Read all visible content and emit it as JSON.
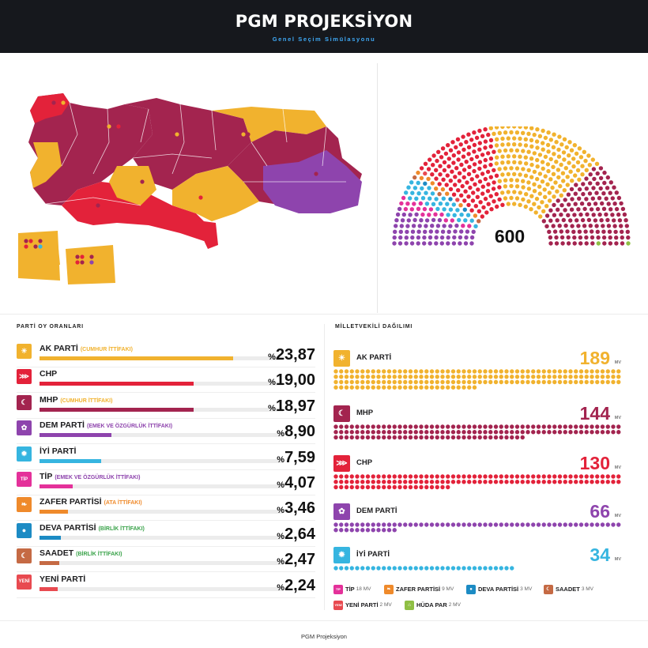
{
  "header": {
    "title": "PGM PROJEKSİYON",
    "subtitle": "Genel Seçim Simülasyonu"
  },
  "colors": {
    "akp": "#f1b22e",
    "chp": "#e3223a",
    "mhp": "#a3244f",
    "dem": "#8e44ad",
    "iyi": "#36b5e0",
    "tip": "#e4319a",
    "zafer": "#ef8a2b",
    "deva": "#1c8bc4",
    "saadet": "#c56a44",
    "yeni": "#e84a50",
    "huda": "#8fbf44"
  },
  "parliament": {
    "total": "600"
  },
  "votes": {
    "title": "PARTİ OY ORANLARI",
    "rows": [
      {
        "name": "AK PARTİ",
        "alliance": "(CUMHUR İTTİFAKI)",
        "percent_symbol": "%",
        "value": "23,87",
        "share": 23.87,
        "color_key": "akp",
        "alliance_color": "#f1b22e",
        "logo": "☀"
      },
      {
        "name": "CHP",
        "alliance": "",
        "percent_symbol": "%",
        "value": "19,00",
        "share": 19.0,
        "color_key": "chp",
        "alliance_color": "#e3223a",
        "logo": "⋙"
      },
      {
        "name": "MHP",
        "alliance": "(CUMHUR İTTİFAKI)",
        "percent_symbol": "%",
        "value": "18,97",
        "share": 18.97,
        "color_key": "mhp",
        "alliance_color": "#f1b22e",
        "logo": "☾"
      },
      {
        "name": "DEM PARTİ",
        "alliance": "(EMEK VE ÖZGÜRLÜK İTTİFAKI)",
        "percent_symbol": "%",
        "value": "8,90",
        "share": 8.9,
        "color_key": "dem",
        "alliance_color": "#8e44ad",
        "logo": "✿"
      },
      {
        "name": "İYİ PARTİ",
        "alliance": "",
        "percent_symbol": "%",
        "value": "7,59",
        "share": 7.59,
        "color_key": "iyi",
        "alliance_color": "#36b5e0",
        "logo": "✹"
      },
      {
        "name": "TİP",
        "alliance": "(EMEK VE ÖZGÜRLÜK İTTİFAKI)",
        "percent_symbol": "%",
        "value": "4,07",
        "share": 4.07,
        "color_key": "tip",
        "alliance_color": "#8e44ad",
        "logo": "TİP"
      },
      {
        "name": "ZAFER PARTİSİ",
        "alliance": "(ATA İTTİFAKI)",
        "percent_symbol": "%",
        "value": "3,46",
        "share": 3.46,
        "color_key": "zafer",
        "alliance_color": "#ef8a2b",
        "logo": "❧"
      },
      {
        "name": "DEVA PARTİSİ",
        "alliance": "(BİRLİK İTTİFAKI)",
        "percent_symbol": "%",
        "value": "2,64",
        "share": 2.64,
        "color_key": "deva",
        "alliance_color": "#3aa34a",
        "logo": "●"
      },
      {
        "name": "SAADET",
        "alliance": "(BİRLİK İTTİFAKI)",
        "percent_symbol": "%",
        "value": "2,47",
        "share": 2.47,
        "color_key": "saadet",
        "alliance_color": "#3aa34a",
        "logo": "☾"
      },
      {
        "name": "YENİ PARTİ",
        "alliance": "",
        "percent_symbol": "%",
        "value": "2,24",
        "share": 2.24,
        "color_key": "yeni",
        "alliance_color": "#e84a50",
        "logo": "YENİ"
      }
    ]
  },
  "seats": {
    "title": "MİLLETVEKİLİ DAĞILIMI",
    "mv_label": "MV",
    "rows": [
      {
        "name": "AK PARTİ",
        "count": "189",
        "n": 189,
        "color_key": "akp",
        "logo": "☀"
      },
      {
        "name": "MHP",
        "count": "144",
        "n": 144,
        "color_key": "mhp",
        "logo": "☾"
      },
      {
        "name": "CHP",
        "count": "130",
        "n": 130,
        "color_key": "chp",
        "logo": "⋙"
      },
      {
        "name": "DEM PARTİ",
        "count": "66",
        "n": 66,
        "color_key": "dem",
        "logo": "✿"
      },
      {
        "name": "İYİ PARTİ",
        "count": "34",
        "n": 34,
        "color_key": "iyi",
        "logo": "✹"
      }
    ],
    "small": [
      {
        "name": "TİP",
        "mv": "18 MV",
        "color_key": "tip",
        "logo": "TİP"
      },
      {
        "name": "ZAFER PARTİSİ",
        "mv": "9 MV",
        "color_key": "zafer",
        "logo": "❧"
      },
      {
        "name": "DEVA PARTİSİ",
        "mv": "3 MV",
        "color_key": "deva",
        "logo": "●"
      },
      {
        "name": "SAADET",
        "mv": "3 MV",
        "color_key": "saadet",
        "logo": "☾"
      },
      {
        "name": "YENİ PARTİ",
        "mv": "2 MV",
        "color_key": "yeni",
        "logo": "YENİ"
      },
      {
        "name": "HÜDA PAR",
        "mv": "2 MV",
        "color_key": "huda",
        "logo": "⌂"
      }
    ]
  },
  "footer": {
    "text": "PGM Projeksiyon"
  }
}
